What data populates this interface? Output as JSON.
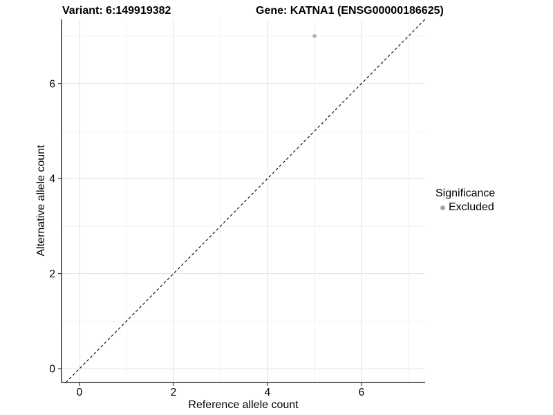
{
  "chart_data": {
    "type": "scatter",
    "title_left": "Variant: 6:149919382",
    "title_right": "Gene: KATNA1 (ENSG00000186625)",
    "xlabel": "Reference allele count",
    "ylabel": "Alternative allele count",
    "xlim": [
      -0.382,
      7.353
    ],
    "ylim": [
      -0.291,
      7.35
    ],
    "xticks": [
      0,
      2,
      4,
      6
    ],
    "yticks": [
      0,
      2,
      4,
      6
    ],
    "xticks_minor": [
      1,
      3,
      5,
      7
    ],
    "yticks_minor": [
      1,
      3,
      5,
      7
    ],
    "grid": true,
    "legend_position": "right",
    "points": [
      {
        "x": 5,
        "y": 7,
        "series": "Excluded"
      }
    ],
    "abline": {
      "slope": 1,
      "intercept": 0,
      "style": "dashed"
    },
    "legend": {
      "title": "Significance",
      "items": [
        {
          "label": "Excluded",
          "marker": "circle",
          "color": "#a6a6a6"
        }
      ]
    },
    "colors": {
      "background": "#ffffff",
      "point": "#adadad",
      "grid_major": "#e4e4e4",
      "grid_minor": "#f1f1f1",
      "axis_line": "#333333",
      "tick": "#333333",
      "text": "#000000",
      "abline": "#000000"
    }
  }
}
